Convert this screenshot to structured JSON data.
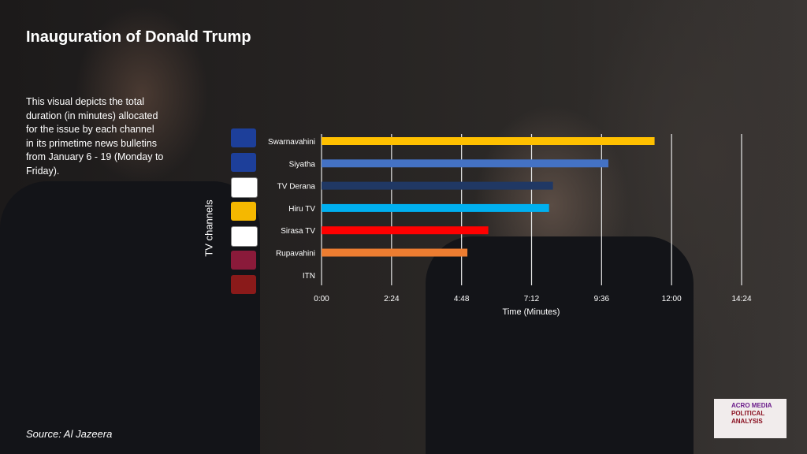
{
  "title": "Inauguration of Donald Trump",
  "description": "This visual depicts the total duration (in minutes) allocated for the issue by each channel in its primetime news bulletins from January 6 - 19 (Monday to Friday).",
  "source": "Source: Al Jazeera",
  "brand": {
    "line1": "ACRO MEDIA",
    "line2": "POLITICAL",
    "line3": "ANALYSIS"
  },
  "chart_data": {
    "type": "bar",
    "orientation": "horizontal",
    "title": "",
    "xlabel": "Time (Minutes)",
    "ylabel": "TV channels",
    "categories": [
      "Swarnavahini",
      "Siyatha",
      "TV Derana",
      "Hiru TV",
      "Sirasa TV",
      "Rupavahini",
      "ITN"
    ],
    "values_seconds": [
      685,
      590,
      476,
      468,
      343,
      300,
      0
    ],
    "colors": [
      "#ffc000",
      "#4472c4",
      "#203864",
      "#00b0f0",
      "#ff0000",
      "#ed7d31",
      "#888888"
    ],
    "xlim_seconds": [
      0,
      864
    ],
    "xticks_seconds": [
      0,
      144,
      288,
      432,
      576,
      720,
      864
    ],
    "xtick_labels": [
      "0:00",
      "2:24",
      "4:48",
      "7:12",
      "9:36",
      "12:00",
      "14:24"
    ],
    "grid": true
  },
  "logo_colors": [
    "#1d3f9a",
    "#1d3f9a",
    "#ffffff",
    "#f5b800",
    "#ffffff",
    "#8a1a3a",
    "#8a1a1a"
  ]
}
